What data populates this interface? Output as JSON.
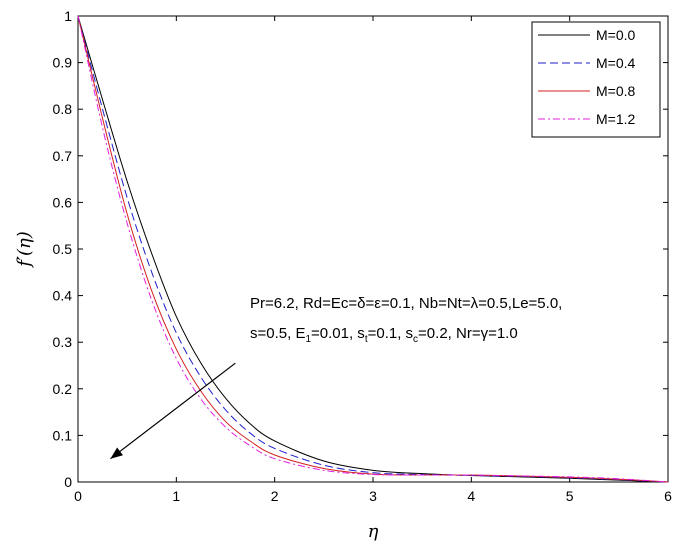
{
  "chart_data": {
    "type": "line",
    "title": "",
    "xlabel": "η",
    "ylabel": "f′(η)",
    "xlim": [
      0,
      6
    ],
    "ylim": [
      0,
      1
    ],
    "x_ticks": [
      "0",
      "1",
      "2",
      "3",
      "4",
      "5",
      "6"
    ],
    "y_ticks": [
      "0",
      "0.1",
      "0.2",
      "0.3",
      "0.4",
      "0.5",
      "0.6",
      "0.7",
      "0.8",
      "0.9",
      "1"
    ],
    "grid": false,
    "legend": "top-right",
    "x": [
      0,
      0.25,
      0.5,
      0.75,
      1.0,
      1.25,
      1.5,
      1.75,
      2.0,
      2.5,
      3.0,
      3.5,
      4.0,
      4.5,
      5.0,
      5.5,
      6.0
    ],
    "series": [
      {
        "name": "M=0.0",
        "color": "#000000",
        "dash": "solid",
        "values": [
          1.0,
          0.82,
          0.645,
          0.49,
          0.355,
          0.255,
          0.18,
          0.125,
          0.088,
          0.045,
          0.025,
          0.018,
          0.014,
          0.011,
          0.008,
          0.004,
          0.0
        ]
      },
      {
        "name": "M=0.4",
        "color": "#1f1fcc",
        "dash": "dashed",
        "values": [
          1.0,
          0.8,
          0.61,
          0.45,
          0.32,
          0.225,
          0.155,
          0.105,
          0.072,
          0.036,
          0.02,
          0.016,
          0.014,
          0.012,
          0.009,
          0.005,
          0.0
        ]
      },
      {
        "name": "M=0.8",
        "color": "#d42020",
        "dash": "solid",
        "values": [
          1.0,
          0.78,
          0.575,
          0.41,
          0.285,
          0.195,
          0.13,
          0.088,
          0.058,
          0.029,
          0.017,
          0.015,
          0.015,
          0.013,
          0.01,
          0.006,
          0.0
        ]
      },
      {
        "name": "M=1.2",
        "color": "#e020e0",
        "dash": "dashdot",
        "values": [
          1.0,
          0.76,
          0.555,
          0.39,
          0.265,
          0.178,
          0.118,
          0.078,
          0.05,
          0.025,
          0.016,
          0.015,
          0.015,
          0.013,
          0.011,
          0.007,
          0.0
        ]
      }
    ],
    "annotations": {
      "line1": "Pr=6.2, Rd=Ec=δ=ε=0.1, Nb=Nt=λ=0.5,Le=5.0,",
      "line2_parts": [
        "s=0.5, E",
        "1",
        "=0.01, s",
        "t",
        "=0.1, s",
        "c",
        "=0.2, Nr=γ=1.0"
      ],
      "arrow_from": [
        1.6,
        0.255
      ],
      "arrow_to": [
        0.33,
        0.05
      ]
    }
  }
}
